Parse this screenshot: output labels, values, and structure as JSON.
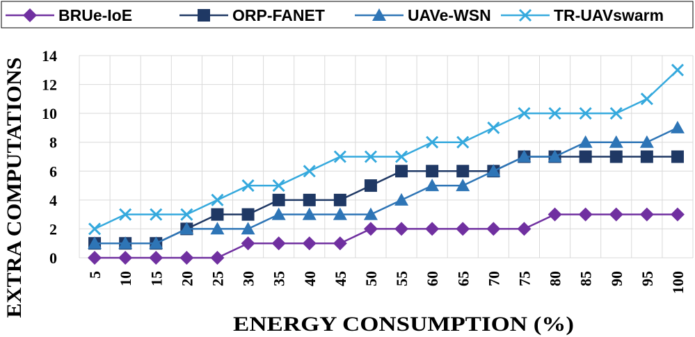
{
  "chart_data": {
    "type": "line",
    "title": "",
    "xlabel": "ENERGY CONSUMPTION (%)",
    "ylabel": "EXTRA COMPUTATIONS",
    "categories": [
      "5",
      "10",
      "15",
      "20",
      "25",
      "30",
      "35",
      "40",
      "45",
      "50",
      "55",
      "60",
      "65",
      "70",
      "75",
      "80",
      "85",
      "90",
      "95",
      "100"
    ],
    "ylim": [
      0,
      14
    ],
    "yticks": [
      "0",
      "2",
      "4",
      "6",
      "8",
      "10",
      "12",
      "14"
    ],
    "grid": true,
    "legend_position": "top",
    "series": [
      {
        "name": "BRUe-IoE",
        "color": "#7030a0",
        "marker": "diamond",
        "values": [
          0,
          0,
          0,
          0,
          0,
          1,
          1,
          1,
          1,
          2,
          2,
          2,
          2,
          2,
          2,
          3,
          3,
          3,
          3,
          3
        ]
      },
      {
        "name": "ORP-FANET",
        "color": "#1f3864",
        "marker": "square",
        "values": [
          1,
          1,
          1,
          2,
          3,
          3,
          4,
          4,
          4,
          5,
          6,
          6,
          6,
          6,
          7,
          7,
          7,
          7,
          7,
          7
        ]
      },
      {
        "name": "UAVe-WSN",
        "color": "#2e75b6",
        "marker": "triangle",
        "values": [
          1,
          1,
          1,
          2,
          2,
          2,
          3,
          3,
          3,
          3,
          4,
          5,
          5,
          6,
          7,
          7,
          8,
          8,
          8,
          9
        ]
      },
      {
        "name": "TR-UAVswarm",
        "color": "#35a9dd",
        "marker": "x",
        "values": [
          2,
          3,
          3,
          3,
          4,
          5,
          5,
          6,
          7,
          7,
          7,
          8,
          8,
          9,
          10,
          10,
          10,
          10,
          11,
          13
        ]
      }
    ]
  }
}
